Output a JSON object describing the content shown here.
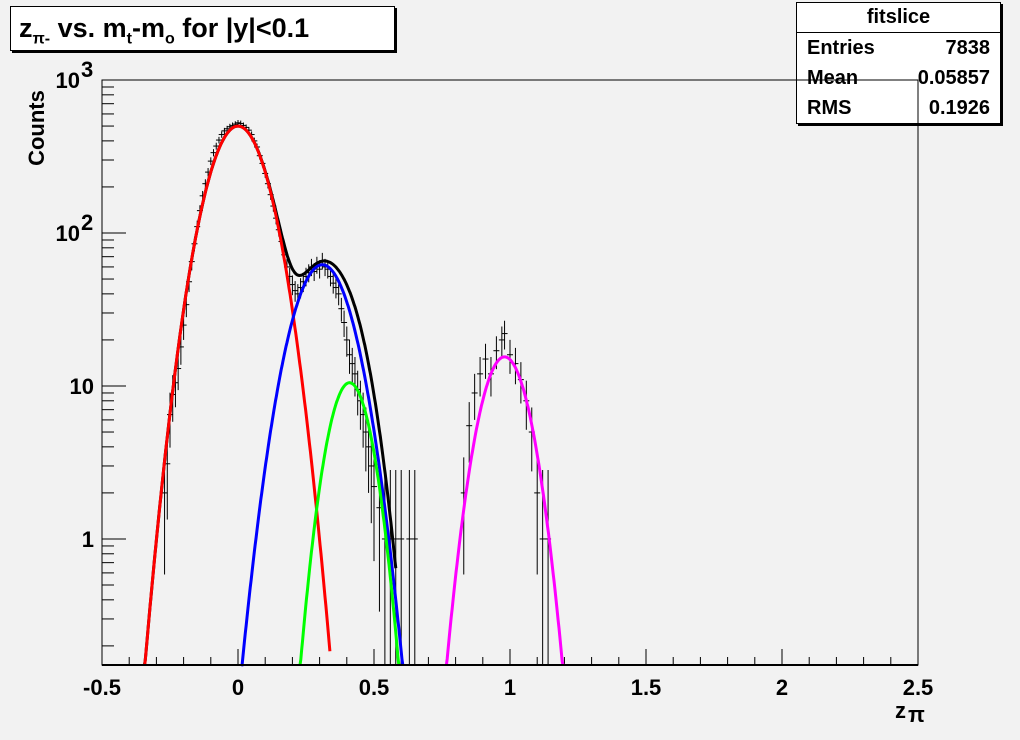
{
  "title": {
    "z": "z",
    "sub_pi": "π-",
    "mid": " vs. m",
    "sub_t": "t",
    "dash": "-m",
    "sub_o": "o",
    "tail": " for |y|<0.1"
  },
  "stats": {
    "header": "fitslice",
    "rows": [
      {
        "label": "Entries",
        "value": "7838"
      },
      {
        "label": "Mean",
        "value": "0.05857"
      },
      {
        "label": "RMS",
        "value": "0.1926"
      }
    ]
  },
  "chart_data": {
    "type": "scatter",
    "ylabel": "Counts",
    "xlabel_main": "z",
    "xlabel_sub": "π",
    "xlim": [
      -0.5,
      2.5
    ],
    "ylim": [
      0.15,
      1000
    ],
    "y_scale": "log",
    "x_ticks": [
      "-0.5",
      "0",
      "0.5",
      "1",
      "1.5",
      "2",
      "2.5"
    ],
    "y_ticks": [
      {
        "v": 1,
        "label": "1"
      },
      {
        "v": 10,
        "label": "10"
      },
      {
        "v": 100,
        "label": "10",
        "exp": "2"
      },
      {
        "v": 1000,
        "label": "10",
        "exp": "3"
      }
    ],
    "colors": {
      "data": "#000000",
      "total": "#000000",
      "g1": "#ff0000",
      "g2": "#0000ff",
      "g3": "#00ff00",
      "g4": "#ff00ff"
    },
    "fit_components": [
      {
        "name": "total",
        "amp": 0,
        "mean": 0,
        "sigma": 0
      },
      {
        "name": "g1",
        "amp": 500,
        "mean": 0.0,
        "sigma": 0.085
      },
      {
        "name": "g2",
        "amp": 62,
        "mean": 0.31,
        "sigma": 0.085
      },
      {
        "name": "g3",
        "amp": 10.5,
        "mean": 0.41,
        "sigma": 0.062
      },
      {
        "name": "g4",
        "amp": 15.5,
        "mean": 0.98,
        "sigma": 0.07
      }
    ],
    "points": [
      [
        -0.27,
        2.0
      ],
      [
        -0.26,
        3.1
      ],
      [
        -0.25,
        6.5
      ],
      [
        -0.24,
        8.8
      ],
      [
        -0.23,
        10.5
      ],
      [
        -0.22,
        13.0
      ],
      [
        -0.21,
        18
      ],
      [
        -0.2,
        25
      ],
      [
        -0.19,
        34
      ],
      [
        -0.18,
        48
      ],
      [
        -0.17,
        65
      ],
      [
        -0.16,
        85
      ],
      [
        -0.15,
        110
      ],
      [
        -0.14,
        140
      ],
      [
        -0.13,
        175
      ],
      [
        -0.12,
        210
      ],
      [
        -0.11,
        250
      ],
      [
        -0.1,
        295
      ],
      [
        -0.09,
        335
      ],
      [
        -0.08,
        370
      ],
      [
        -0.07,
        405
      ],
      [
        -0.06,
        440
      ],
      [
        -0.05,
        465
      ],
      [
        -0.04,
        480
      ],
      [
        -0.03,
        495
      ],
      [
        -0.02,
        505
      ],
      [
        -0.01,
        515
      ],
      [
        0.0,
        525
      ],
      [
        0.01,
        520
      ],
      [
        0.02,
        505
      ],
      [
        0.03,
        490
      ],
      [
        0.04,
        470
      ],
      [
        0.05,
        440
      ],
      [
        0.06,
        400
      ],
      [
        0.07,
        365
      ],
      [
        0.08,
        320
      ],
      [
        0.09,
        285
      ],
      [
        0.1,
        245
      ],
      [
        0.11,
        210
      ],
      [
        0.12,
        178
      ],
      [
        0.13,
        150
      ],
      [
        0.14,
        125
      ],
      [
        0.15,
        105
      ],
      [
        0.16,
        88
      ],
      [
        0.17,
        72
      ],
      [
        0.18,
        60
      ],
      [
        0.19,
        52
      ],
      [
        0.2,
        46
      ],
      [
        0.21,
        42
      ],
      [
        0.22,
        40
      ],
      [
        0.23,
        44
      ],
      [
        0.24,
        48
      ],
      [
        0.25,
        52
      ],
      [
        0.26,
        55
      ],
      [
        0.27,
        60
      ],
      [
        0.28,
        56
      ],
      [
        0.29,
        62
      ],
      [
        0.3,
        58
      ],
      [
        0.31,
        66
      ],
      [
        0.32,
        60
      ],
      [
        0.33,
        58
      ],
      [
        0.34,
        52
      ],
      [
        0.35,
        47
      ],
      [
        0.36,
        44
      ],
      [
        0.37,
        40
      ],
      [
        0.38,
        32
      ],
      [
        0.39,
        26
      ],
      [
        0.4,
        20
      ],
      [
        0.41,
        16
      ],
      [
        0.42,
        14
      ],
      [
        0.43,
        12
      ],
      [
        0.44,
        9.5
      ],
      [
        0.45,
        8
      ],
      [
        0.46,
        6.5
      ],
      [
        0.47,
        5
      ],
      [
        0.48,
        4
      ],
      [
        0.49,
        3
      ],
      [
        0.5,
        2.2
      ],
      [
        0.52,
        1.6
      ],
      [
        0.54,
        1.0
      ],
      [
        0.56,
        1.0
      ],
      [
        0.58,
        1.0
      ],
      [
        0.6,
        1.0
      ],
      [
        0.63,
        1.0
      ],
      [
        0.65,
        1.0
      ],
      [
        0.83,
        2.0
      ],
      [
        0.85,
        5.5
      ],
      [
        0.87,
        9
      ],
      [
        0.89,
        12
      ],
      [
        0.91,
        15
      ],
      [
        0.93,
        12
      ],
      [
        0.95,
        17
      ],
      [
        0.97,
        20
      ],
      [
        0.98,
        22
      ],
      [
        1.0,
        16
      ],
      [
        1.02,
        14
      ],
      [
        1.04,
        11
      ],
      [
        1.06,
        8
      ],
      [
        1.08,
        5
      ],
      [
        1.1,
        2
      ],
      [
        1.12,
        1.0
      ],
      [
        1.14,
        1.0
      ]
    ]
  }
}
